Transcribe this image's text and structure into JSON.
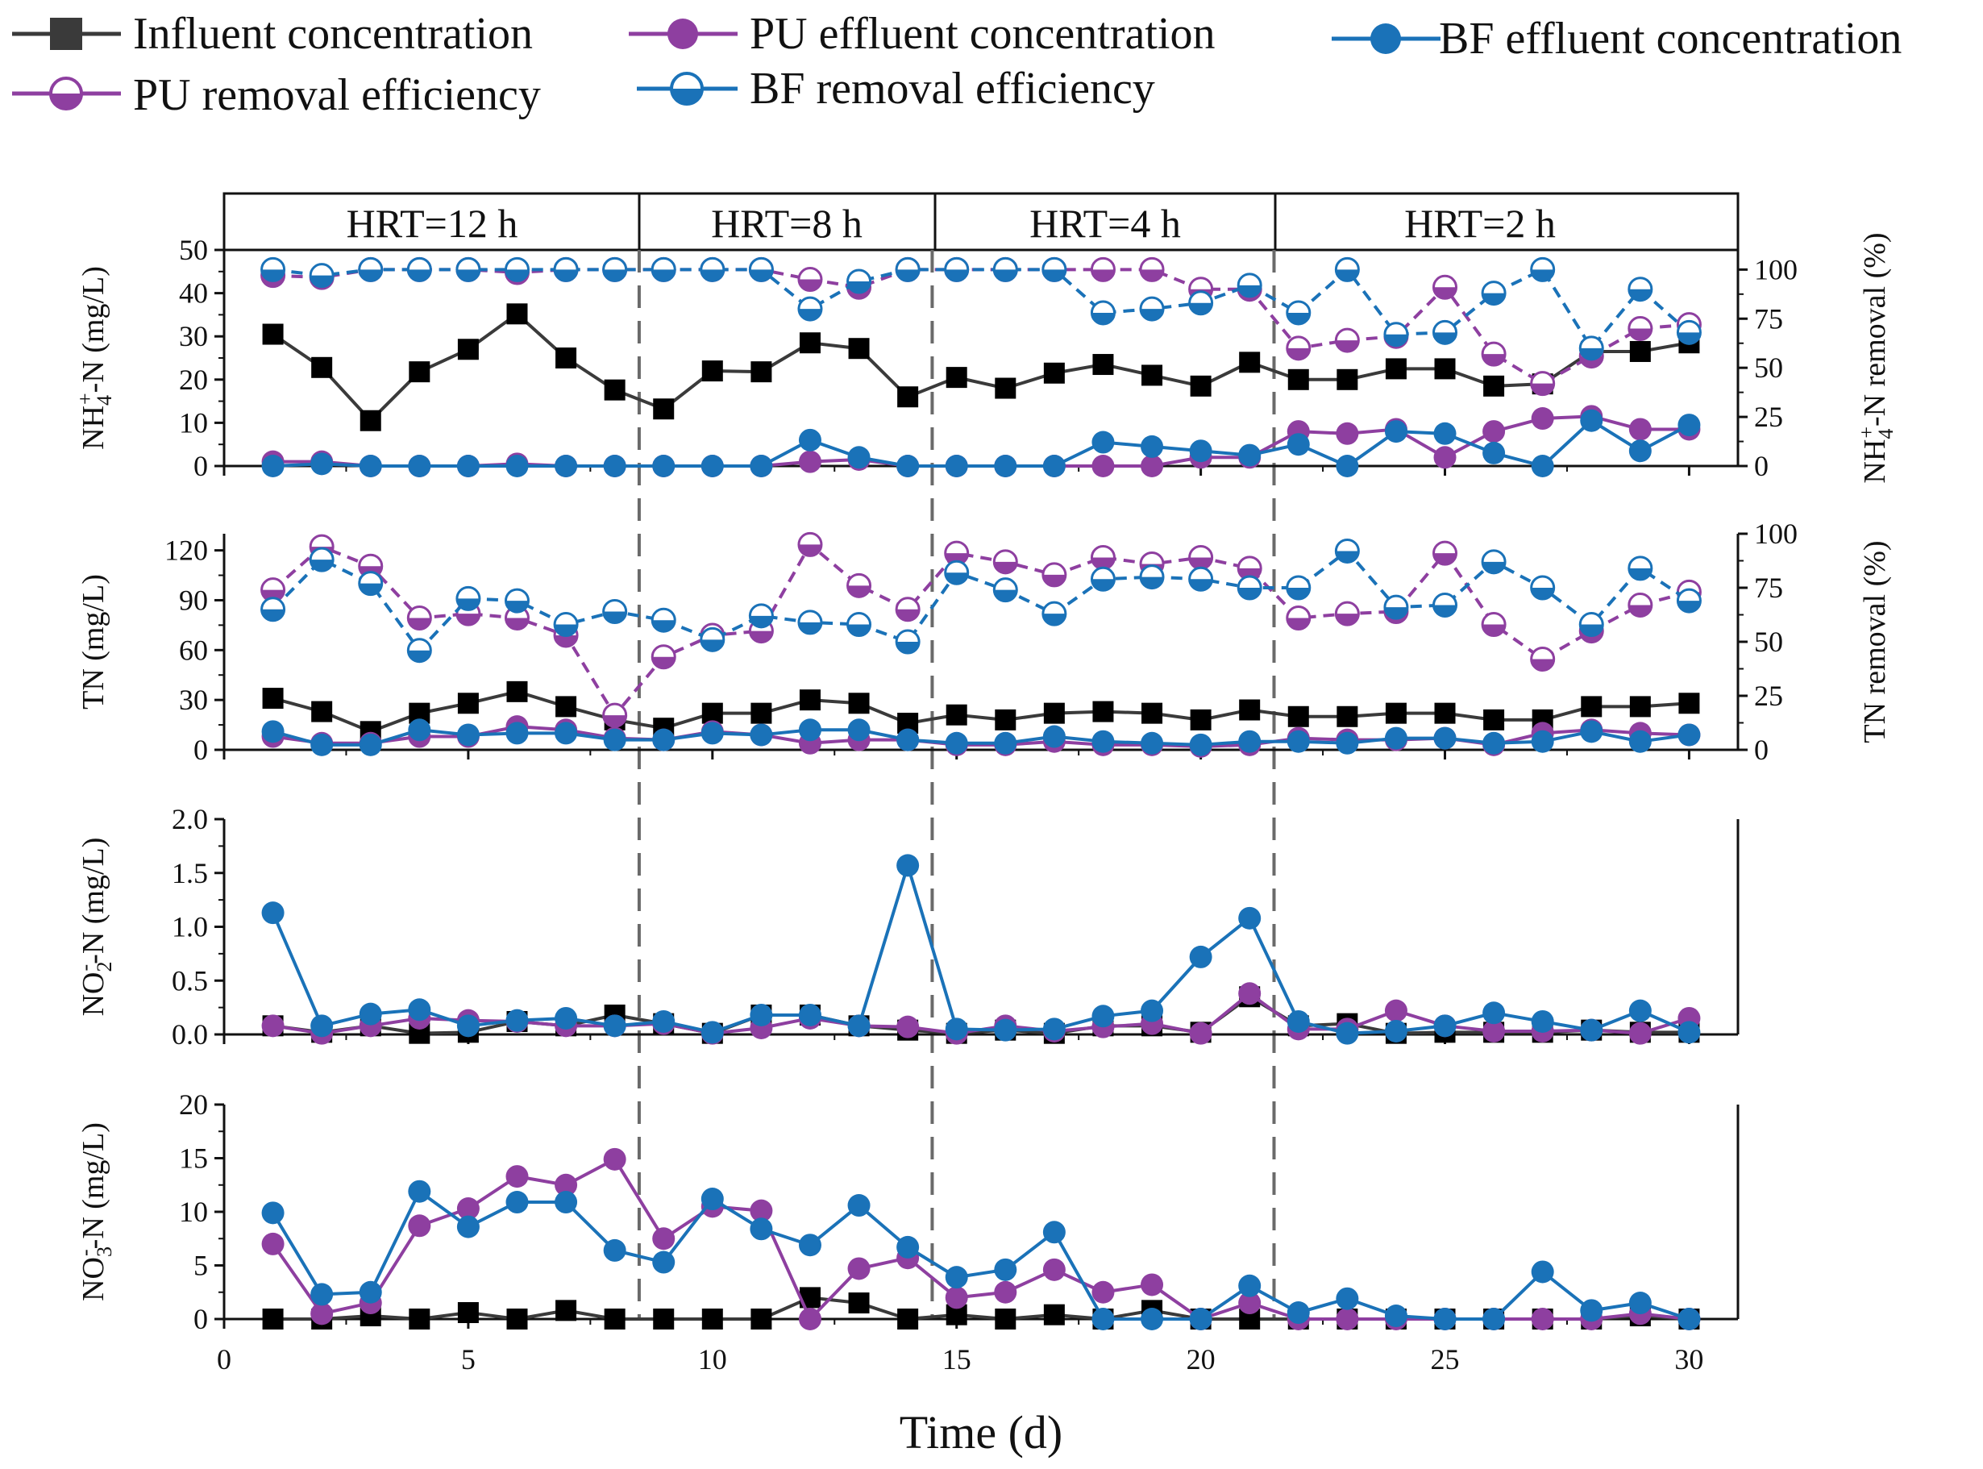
{
  "legend": {
    "influent": "Influent concentration",
    "pu_eff": "PU effluent concentration",
    "bf_eff": "BF effluent concentration",
    "pu_rem": "PU removal efficiency",
    "bf_rem": "BF removal efficiency"
  },
  "colors": {
    "influent": "#3a3a3a",
    "pu": "#8e3fa0",
    "bf": "#1a72b8",
    "divider": "#6a6a6a"
  },
  "hrt": [
    "HRT=12 h",
    "HRT=8 h",
    "HRT=4 h",
    "HRT=2 h"
  ],
  "chart_data": {
    "type": "line",
    "xlabel": "Time (d)",
    "xlim": [
      0,
      31
    ],
    "xticks": [
      0,
      5,
      10,
      15,
      20,
      25,
      30
    ],
    "x": [
      1,
      2,
      3,
      4,
      5,
      6,
      7,
      8,
      9,
      10,
      11,
      12,
      13,
      14,
      15,
      16,
      17,
      18,
      19,
      20,
      21,
      22,
      23,
      24,
      25,
      26,
      27,
      28,
      29,
      30
    ],
    "hrt_boundaries": [
      8.5,
      14.5,
      21.5
    ],
    "panels": [
      {
        "ylabel": "NH4+-N (mg/L)",
        "ylabel_main": "NH",
        "ylabel_sub": "4",
        "ylabel_sup": "+",
        "ylabel_rest": "-N (mg/L)",
        "ylim": [
          0,
          50
        ],
        "yticks": [
          0,
          10,
          20,
          30,
          40,
          50
        ],
        "y2label": "NH4+-N removal (%)",
        "y2label_main": "NH",
        "y2label_sub": "4",
        "y2label_sup": "+",
        "y2label_rest": "-N removal (%)",
        "y2lim": [
          0,
          110
        ],
        "y2ticks": [
          0,
          25,
          50,
          75,
          100
        ],
        "series": [
          {
            "name": "Influent concentration",
            "axis": "left",
            "values": [
              30.5,
              22.8,
              10.5,
              21.8,
              27,
              35.2,
              25,
              17.6,
              13.2,
              22,
              21.8,
              28.5,
              27.2,
              16,
              20.5,
              18,
              21.5,
              23.5,
              21,
              18.5,
              24,
              20,
              20,
              22.5,
              22.5,
              18.5,
              19,
              26.5,
              26.5,
              28.5
            ]
          },
          {
            "name": "PU effluent concentration",
            "axis": "left",
            "values": [
              1,
              1,
              0,
              0,
              0,
              0.5,
              0,
              0,
              0,
              0,
              0,
              1,
              1.5,
              0,
              0,
              0,
              0,
              0,
              0,
              2,
              2,
              8,
              7.5,
              8.5,
              2,
              8,
              11,
              11.5,
              8.5,
              8.5
            ]
          },
          {
            "name": "BF effluent concentration",
            "axis": "left",
            "values": [
              0,
              0.5,
              0,
              0,
              0,
              0,
              0,
              0,
              0,
              0,
              0,
              6,
              2,
              0,
              0,
              0,
              0,
              5.5,
              4.5,
              3.5,
              2.5,
              5,
              0,
              8,
              7.5,
              3,
              0,
              10.5,
              3.5,
              9.5
            ]
          },
          {
            "name": "PU removal efficiency",
            "axis": "right",
            "values": [
              97,
              96,
              100,
              100,
              100,
              98.5,
              100,
              100,
              100,
              100,
              100,
              95,
              91,
              100,
              100,
              100,
              100,
              100,
              100,
              90,
              90,
              60,
              64,
              66,
              91,
              57,
              42,
              56,
              70,
              72
            ]
          },
          {
            "name": "BF removal efficiency",
            "axis": "right",
            "values": [
              100,
              97,
              100,
              100,
              100,
              100,
              100,
              100,
              100,
              100,
              100,
              80,
              94,
              100,
              100,
              100,
              100,
              78,
              80,
              83,
              92,
              78,
              100,
              67,
              68,
              88,
              100,
              60,
              90,
              68
            ]
          }
        ]
      },
      {
        "ylabel": "TN (mg/L)",
        "ylim": [
          0,
          130
        ],
        "yticks": [
          0,
          30,
          60,
          90,
          120
        ],
        "y2label": "TN removal (%)",
        "y2lim": [
          0,
          100
        ],
        "y2ticks": [
          0,
          25,
          50,
          75,
          100
        ],
        "series": [
          {
            "name": "Influent concentration",
            "axis": "left",
            "values": [
              31,
              23,
              11,
              22,
              28,
              35,
              26,
              18,
              13,
              22,
              22,
              30,
              28,
              16,
              21,
              18,
              22,
              23,
              22,
              18,
              24,
              20,
              20,
              22,
              22,
              18,
              18,
              26,
              26,
              28
            ]
          },
          {
            "name": "PU effluent concentration",
            "axis": "left",
            "values": [
              8,
              4,
              4,
              8,
              8,
              14,
              12,
              7,
              6,
              11,
              9,
              4,
              6,
              6,
              3,
              3,
              5,
              3,
              3,
              2,
              3,
              7,
              6,
              6,
              7,
              3,
              10,
              12,
              10,
              9
            ]
          },
          {
            "name": "BF effluent concentration",
            "axis": "left",
            "values": [
              11,
              3,
              3,
              12,
              9,
              10,
              10,
              6,
              6,
              10,
              9,
              12,
              12,
              6,
              4,
              4,
              8,
              5,
              4,
              3,
              5,
              5,
              4,
              7,
              7,
              4,
              5,
              11,
              5,
              9
            ]
          },
          {
            "name": "PU removal efficiency",
            "axis": "right",
            "values": [
              74,
              94,
              85,
              61,
              63,
              61,
              53,
              16,
              43,
              53,
              55,
              95,
              76,
              65,
              91,
              87,
              81,
              89,
              86,
              89,
              84,
              61,
              63,
              64,
              91,
              58,
              42,
              55,
              67,
              73
            ]
          },
          {
            "name": "BF removal efficiency",
            "axis": "right",
            "values": [
              65,
              88,
              77,
              46,
              70,
              69,
              58,
              64,
              60,
              51,
              62,
              59,
              58,
              50,
              82,
              74,
              63,
              79,
              80,
              79,
              75,
              75,
              92,
              66,
              67,
              87,
              75,
              58,
              84,
              69
            ]
          }
        ]
      },
      {
        "ylabel": "NO2--N (mg/L)",
        "ylabel_main": "NO",
        "ylabel_sub": "2",
        "ylabel_sup": "-",
        "ylabel_rest": "-N (mg/L)",
        "ylim": [
          0,
          2
        ],
        "yticks": [
          "0.0",
          "0.5",
          "1.0",
          "1.5",
          "2.0"
        ],
        "series": [
          {
            "name": "Influent concentration",
            "values": [
              0.08,
              0.02,
              0.08,
              0.01,
              0.02,
              0.12,
              0.08,
              0.18,
              0.1,
              0.01,
              0.18,
              0.18,
              0.08,
              0.04,
              0.01,
              0.04,
              0.01,
              0.08,
              0.08,
              0.02,
              0.35,
              0.08,
              0.1,
              0.01,
              0.02,
              0.02,
              0.02,
              0.04,
              0.02,
              0.02
            ]
          },
          {
            "name": "PU effluent concentration",
            "values": [
              0.08,
              0.01,
              0.08,
              0.15,
              0.13,
              0.12,
              0.08,
              0.08,
              0.1,
              0.01,
              0.06,
              0.15,
              0.08,
              0.07,
              0.01,
              0.08,
              0.03,
              0.07,
              0.1,
              0.01,
              0.38,
              0.05,
              0.05,
              0.22,
              0.08,
              0.03,
              0.03,
              0.04,
              0.01,
              0.15
            ]
          },
          {
            "name": "BF effluent concentration",
            "values": [
              1.13,
              0.08,
              0.19,
              0.23,
              0.08,
              0.13,
              0.15,
              0.08,
              0.12,
              0.02,
              0.18,
              0.18,
              0.08,
              1.57,
              0.05,
              0.04,
              0.05,
              0.17,
              0.22,
              0.72,
              1.08,
              0.12,
              0.01,
              0.03,
              0.08,
              0.2,
              0.12,
              0.04,
              0.22,
              0.02
            ]
          }
        ]
      },
      {
        "ylabel": "NO3--N (mg/L)",
        "ylabel_main": "NO",
        "ylabel_sub": "3",
        "ylabel_sup": "-",
        "ylabel_rest": "-N (mg/L)",
        "ylim": [
          0,
          20
        ],
        "yticks": [
          0,
          5,
          10,
          15,
          20
        ],
        "series": [
          {
            "name": "Influent concentration",
            "values": [
              0,
              0,
              0.3,
              0,
              0.6,
              0,
              0.8,
              0,
              0,
              0,
              0,
              2,
              1.5,
              0,
              0.4,
              0,
              0.4,
              0,
              0.8,
              0,
              0,
              0,
              0,
              0,
              0,
              0,
              0,
              0,
              0.3,
              0
            ]
          },
          {
            "name": "PU effluent concentration",
            "values": [
              7,
              0.5,
              1.5,
              8.7,
              10.3,
              13.3,
              12.5,
              14.9,
              7.5,
              10.5,
              10.1,
              0,
              4.7,
              5.7,
              2,
              2.5,
              4.6,
              2.5,
              3.2,
              0,
              1.5,
              0,
              0,
              0,
              0,
              0,
              0,
              0,
              0.5,
              0
            ]
          },
          {
            "name": "BF effluent concentration",
            "values": [
              9.9,
              2.3,
              2.5,
              11.9,
              8.6,
              10.9,
              10.9,
              6.4,
              5.3,
              11.2,
              8.4,
              6.9,
              10.6,
              6.7,
              3.9,
              4.6,
              8.1,
              0,
              0,
              0,
              3.1,
              0.6,
              1.9,
              0.3,
              0,
              0,
              4.4,
              0.8,
              1.5,
              0
            ]
          }
        ]
      }
    ]
  }
}
